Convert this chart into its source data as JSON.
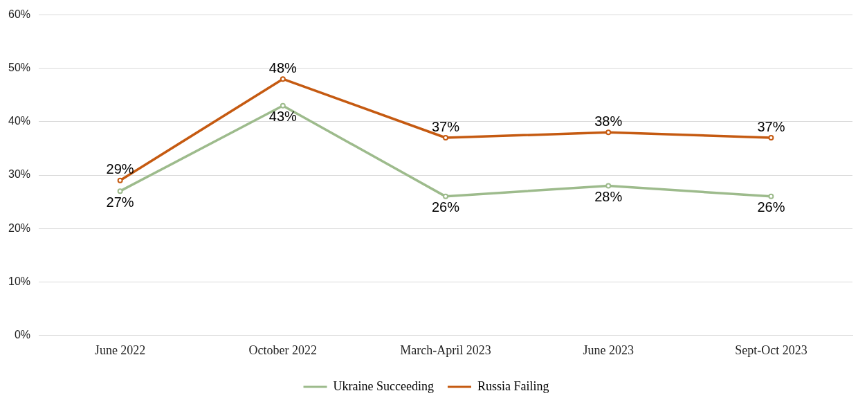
{
  "chart_data": {
    "type": "line",
    "categories": [
      "June 2022",
      "October 2022",
      "March-April 2023",
      "June 2023",
      "Sept-Oct 2023"
    ],
    "series": [
      {
        "name": "Ukraine Succeeding",
        "color": "#9dbb8c",
        "values": [
          27,
          43,
          26,
          28,
          26
        ],
        "value_labels": [
          "27%",
          "43%",
          "26%",
          "28%",
          "26%"
        ]
      },
      {
        "name": "Russia Failing",
        "color": "#c55a11",
        "values": [
          29,
          48,
          37,
          38,
          37
        ],
        "value_labels": [
          "29%",
          "48%",
          "37%",
          "38%",
          "37%"
        ]
      }
    ],
    "ylim": [
      0,
      60
    ],
    "yticks": [
      {
        "value": 0,
        "label": "0%"
      },
      {
        "value": 10,
        "label": "10%"
      },
      {
        "value": 20,
        "label": "20%"
      },
      {
        "value": 30,
        "label": "30%"
      },
      {
        "value": 40,
        "label": "40%"
      },
      {
        "value": 50,
        "label": "50%"
      },
      {
        "value": 60,
        "label": "60%"
      }
    ],
    "grid": "y",
    "legend": "bottom",
    "marker": "circle",
    "line_style": "solid"
  }
}
